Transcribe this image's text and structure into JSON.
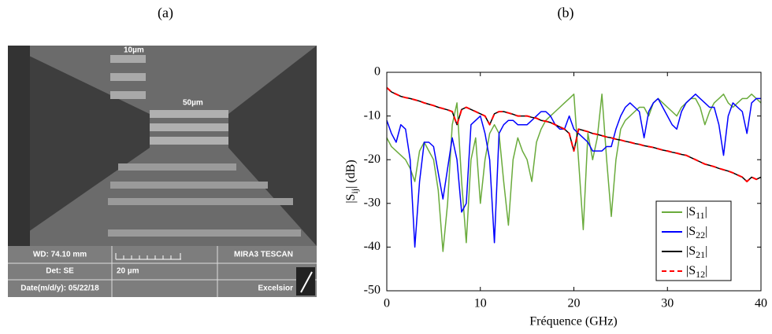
{
  "panels": {
    "a": "(a)",
    "b": "(b)"
  },
  "sem_image": {
    "scale_top": "10µm",
    "scale_mid": "50µm",
    "wd": "WD: 74.10 mm",
    "det": "Det: SE",
    "date": "Date(m/d/y): 05/22/18",
    "scalebar": "20 µm",
    "brand": "MIRA3 TESCAN",
    "mode": "Excelsior"
  },
  "chart_data": {
    "type": "line",
    "xlabel": "Fréquence (GHz)",
    "ylabel": "|Sij| (dB)",
    "x": [
      0,
      0.5,
      1,
      1.5,
      2,
      2.5,
      3,
      3.5,
      4,
      4.5,
      5,
      5.5,
      6,
      6.5,
      7,
      7.5,
      8,
      8.5,
      9,
      9.5,
      10,
      10.5,
      11,
      11.5,
      12,
      12.5,
      13,
      13.5,
      14,
      14.5,
      15,
      15.5,
      16,
      16.5,
      17,
      17.5,
      18,
      18.5,
      19,
      19.5,
      20,
      20.5,
      21,
      21.5,
      22,
      22.5,
      23,
      23.5,
      24,
      24.5,
      25,
      25.5,
      26,
      26.5,
      27,
      27.5,
      28,
      28.5,
      29,
      29.5,
      30,
      30.5,
      31,
      31.5,
      32,
      32.5,
      33,
      33.5,
      34,
      34.5,
      35,
      35.5,
      36,
      36.5,
      37,
      37.5,
      38,
      38.5,
      39,
      39.5,
      40
    ],
    "series": [
      {
        "name": "|S11|",
        "color": "#6aab3c",
        "linestyle": "solid",
        "values": [
          -15,
          -17,
          -18,
          -19,
          -20,
          -22,
          -25,
          -18,
          -16,
          -18,
          -20,
          -27,
          -41,
          -30,
          -12,
          -7,
          -25,
          -39,
          -20,
          -15,
          -30,
          -20,
          -14,
          -12,
          -14,
          -25,
          -35,
          -20,
          -15,
          -18,
          -20,
          -25,
          -16,
          -13,
          -11,
          -10,
          -9,
          -8,
          -7,
          -6,
          -5,
          -20,
          -36,
          -14,
          -20,
          -15,
          -5,
          -20,
          -33,
          -20,
          -13,
          -11,
          -10,
          -9,
          -8,
          -8,
          -10,
          -7,
          -6,
          -7,
          -8,
          -9,
          -10,
          -8,
          -7,
          -6,
          -6,
          -8,
          -12,
          -9,
          -7,
          -6,
          -5,
          -7,
          -8,
          -7,
          -6,
          -6,
          -5,
          -6,
          -7
        ]
      },
      {
        "name": "|S22|",
        "color": "#0000ff",
        "linestyle": "solid",
        "values": [
          -11,
          -14,
          -16,
          -12,
          -13,
          -20,
          -40,
          -25,
          -16,
          -16,
          -17,
          -23,
          -29,
          -22,
          -15,
          -20,
          -32,
          -30,
          -12,
          -11,
          -10,
          -14,
          -20,
          -39,
          -14,
          -12,
          -11,
          -11,
          -12,
          -12,
          -12,
          -11,
          -10,
          -9,
          -9,
          -10,
          -12,
          -13,
          -13,
          -10,
          -13,
          -14,
          -15,
          -16,
          -18,
          -18,
          -18,
          -17,
          -17,
          -13,
          -10,
          -8,
          -7,
          -8,
          -9,
          -15,
          -9,
          -7,
          -6,
          -8,
          -10,
          -12,
          -13,
          -9,
          -7,
          -6,
          -5,
          -6,
          -7,
          -8,
          -8,
          -12,
          -19,
          -10,
          -7,
          -8,
          -9,
          -14,
          -7,
          -6,
          -6
        ]
      },
      {
        "name": "|S21|",
        "color": "#000000",
        "linestyle": "solid",
        "values": [
          -3.5,
          -4.5,
          -5,
          -5.5,
          -5.8,
          -6,
          -6.3,
          -6.6,
          -7,
          -7.3,
          -7.6,
          -8,
          -8.3,
          -8.6,
          -9,
          -12,
          -8.5,
          -8,
          -8.5,
          -9,
          -9.5,
          -10,
          -12,
          -9.5,
          -9,
          -9,
          -9.3,
          -9.6,
          -10,
          -10,
          -10,
          -10.3,
          -10.5,
          -11,
          -11.2,
          -11.5,
          -12,
          -12.5,
          -13,
          -14,
          -18,
          -13,
          -13.3,
          -13.6,
          -14,
          -14.2,
          -14.5,
          -14.8,
          -15,
          -15.3,
          -15.5,
          -15.8,
          -16,
          -16.3,
          -16.5,
          -16.8,
          -17,
          -17.2,
          -17.5,
          -17.8,
          -18,
          -18.3,
          -18.5,
          -18.8,
          -19,
          -19.5,
          -20,
          -20.5,
          -21,
          -21.3,
          -21.6,
          -22,
          -22.3,
          -22.6,
          -23,
          -23.5,
          -24,
          -25,
          -24,
          -24.5,
          -24
        ]
      },
      {
        "name": "|S12|",
        "color": "#ff0000",
        "linestyle": "dashed",
        "values": [
          -3.5,
          -4.5,
          -5,
          -5.5,
          -5.8,
          -6,
          -6.3,
          -6.6,
          -7,
          -7.3,
          -7.6,
          -8,
          -8.3,
          -8.6,
          -9,
          -12,
          -8.5,
          -8,
          -8.5,
          -9,
          -9.5,
          -10,
          -12,
          -9.5,
          -9,
          -9,
          -9.3,
          -9.6,
          -10,
          -10,
          -10,
          -10.3,
          -10.5,
          -11,
          -11.2,
          -11.5,
          -12,
          -12.5,
          -13,
          -14,
          -18,
          -13,
          -13.3,
          -13.6,
          -14,
          -14.2,
          -14.5,
          -14.8,
          -15,
          -15.3,
          -15.5,
          -15.8,
          -16,
          -16.3,
          -16.5,
          -16.8,
          -17,
          -17.2,
          -17.5,
          -17.8,
          -18,
          -18.3,
          -18.5,
          -18.8,
          -19,
          -19.5,
          -20,
          -20.5,
          -21,
          -21.3,
          -21.6,
          -22,
          -22.3,
          -22.6,
          -23,
          -23.5,
          -24,
          -25,
          -24,
          -24.5,
          -24
        ]
      }
    ],
    "xlim": [
      0,
      40
    ],
    "xticks": [
      0,
      10,
      20,
      30,
      40
    ],
    "ylim": [
      -50,
      0
    ],
    "yticks": [
      -50,
      -40,
      -30,
      -20,
      -10,
      0
    ],
    "grid": false,
    "legend": "lower right"
  }
}
